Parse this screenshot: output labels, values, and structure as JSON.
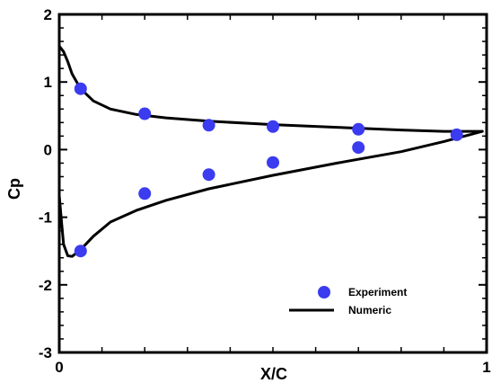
{
  "chart_data": {
    "type": "scatter",
    "xlabel": "X/C",
    "ylabel": "Cp",
    "xlim": [
      0,
      1
    ],
    "ylim": [
      -3,
      2
    ],
    "x_ticks": [
      {
        "value": 0,
        "label": "0"
      },
      {
        "value": 1,
        "label": "1"
      }
    ],
    "y_ticks": [
      {
        "value": -3,
        "label": "-3"
      },
      {
        "value": -2,
        "label": "-2"
      },
      {
        "value": -1,
        "label": "-1"
      },
      {
        "value": 0,
        "label": "0"
      },
      {
        "value": 1,
        "label": "1"
      },
      {
        "value": 2,
        "label": "2"
      }
    ],
    "grid": false,
    "legend_position": "bottom-right",
    "colors": {
      "experiment": "#3b3bf0",
      "numeric": "#000000"
    },
    "series": [
      {
        "name": "Experiment",
        "type": "scatter",
        "points": [
          {
            "x": 0.05,
            "y": 0.9
          },
          {
            "x": 0.2,
            "y": 0.53
          },
          {
            "x": 0.35,
            "y": 0.36
          },
          {
            "x": 0.5,
            "y": 0.34
          },
          {
            "x": 0.7,
            "y": 0.3
          },
          {
            "x": 0.93,
            "y": 0.22
          },
          {
            "x": 0.05,
            "y": -1.5
          },
          {
            "x": 0.2,
            "y": -0.65
          },
          {
            "x": 0.35,
            "y": -0.37
          },
          {
            "x": 0.5,
            "y": -0.19
          },
          {
            "x": 0.7,
            "y": 0.03
          }
        ]
      },
      {
        "name": "Numeric",
        "type": "line",
        "upper": [
          {
            "x": 0.0,
            "y": 1.53
          },
          {
            "x": 0.01,
            "y": 1.45
          },
          {
            "x": 0.02,
            "y": 1.3
          },
          {
            "x": 0.03,
            "y": 1.12
          },
          {
            "x": 0.05,
            "y": 0.9
          },
          {
            "x": 0.08,
            "y": 0.72
          },
          {
            "x": 0.12,
            "y": 0.6
          },
          {
            "x": 0.18,
            "y": 0.52
          },
          {
            "x": 0.25,
            "y": 0.47
          },
          {
            "x": 0.35,
            "y": 0.42
          },
          {
            "x": 0.5,
            "y": 0.37
          },
          {
            "x": 0.65,
            "y": 0.33
          },
          {
            "x": 0.8,
            "y": 0.29
          },
          {
            "x": 0.9,
            "y": 0.27
          },
          {
            "x": 0.96,
            "y": 0.27
          },
          {
            "x": 0.99,
            "y": 0.27
          }
        ],
        "lower": [
          {
            "x": 0.0,
            "y": -0.68
          },
          {
            "x": 0.005,
            "y": -1.05
          },
          {
            "x": 0.01,
            "y": -1.4
          },
          {
            "x": 0.02,
            "y": -1.57
          },
          {
            "x": 0.03,
            "y": -1.58
          },
          {
            "x": 0.05,
            "y": -1.48
          },
          {
            "x": 0.08,
            "y": -1.28
          },
          {
            "x": 0.12,
            "y": -1.07
          },
          {
            "x": 0.18,
            "y": -0.9
          },
          {
            "x": 0.25,
            "y": -0.75
          },
          {
            "x": 0.35,
            "y": -0.58
          },
          {
            "x": 0.5,
            "y": -0.38
          },
          {
            "x": 0.65,
            "y": -0.2
          },
          {
            "x": 0.8,
            "y": -0.03
          },
          {
            "x": 0.9,
            "y": 0.12
          },
          {
            "x": 0.96,
            "y": 0.22
          },
          {
            "x": 0.99,
            "y": 0.27
          }
        ]
      }
    ]
  }
}
